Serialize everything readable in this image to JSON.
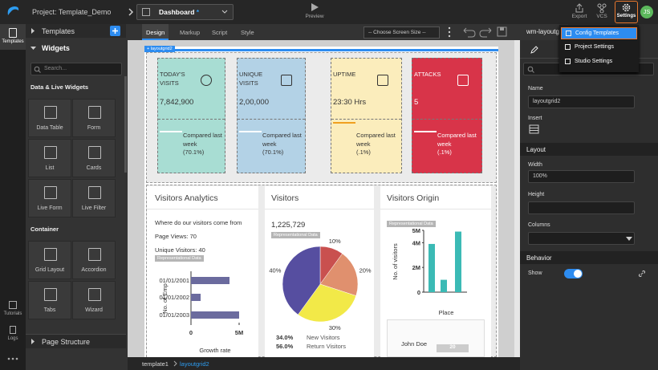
{
  "top_bar": {
    "project": "Project: Template_Demo",
    "page": "Dashboard",
    "page_modified": "*",
    "preview": "Preview",
    "export": "Export",
    "vcs": "VCS",
    "settings": "Settings",
    "user": "JS"
  },
  "left_rail": {
    "templates": "Templates",
    "tutorials": "Tutorials",
    "logs": "Logs"
  },
  "left_panel": {
    "templates": "Templates",
    "widgets": "Widgets",
    "search_placeholder": "Search...",
    "groups": [
      {
        "title": "Data & Live Widgets",
        "items": [
          "Data Table",
          "Form",
          "List",
          "Cards",
          "Live Form",
          "Live Filter"
        ]
      },
      {
        "title": "Container",
        "items": [
          "Grid Layout",
          "Accordion",
          "Tabs",
          "Wizard"
        ]
      }
    ],
    "page_structure": "Page Structure"
  },
  "editor_tabs": [
    "Design",
    "Markup",
    "Script",
    "Style"
  ],
  "screen_size": "-- Choose Screen Size --",
  "canvas": {
    "grid_label": "layoutgrid2",
    "tiles": [
      {
        "title": "TODAY'S VISITS",
        "value": "7,842,900",
        "compare": "Compared last week",
        "change": "(70.1%)"
      },
      {
        "title": "UNIQUE VISITS",
        "value": "2,00,000",
        "compare": "Compared last week",
        "change": "(70.1%)"
      },
      {
        "title": "UPTIME",
        "value": "23:30 Hrs",
        "compare": "Compared last week",
        "change": "(.1%)"
      },
      {
        "title": "ATTACKS",
        "value": "5",
        "compare": "Compared last week",
        "change": "(.1%)"
      }
    ],
    "analytics": {
      "title": "Visitors Analytics",
      "subtitle": "Where do our visitors come from",
      "page_views": "Page Views: 70",
      "unique_visitors": "Unique Visitors: 40",
      "badge": "Representational Data"
    },
    "visitors": {
      "title": "Visitors",
      "total": "1,225,729",
      "badge": "Representational Data",
      "legend": [
        {
          "value": "34.0%",
          "label": "New Visitors"
        },
        {
          "value": "56.0%",
          "label": "Return Visitors"
        }
      ]
    },
    "origin": {
      "title": "Visitors Origin",
      "badge": "Representational Data",
      "table_name": "John Doe",
      "table_value": "20"
    }
  },
  "chart_data": [
    {
      "type": "hbar",
      "categories": [
        "01/01/2001",
        "01/01/2002",
        "01/01/2003"
      ],
      "values": [
        4000000,
        1000000,
        5000000
      ],
      "color": "#6b6b9e",
      "xlim": [
        0,
        5000000
      ],
      "xticks": [
        0,
        {
          "value": 5000000,
          "label": "5M"
        }
      ],
      "x_label": "Growth rate",
      "y_label": "No. of Emp"
    },
    {
      "type": "pie",
      "values": [
        10,
        20,
        30,
        40
      ],
      "value_labels": [
        "10%",
        "20%",
        "30%",
        "40%"
      ],
      "colors": [
        "#c9504f",
        "#e0906e",
        "#f2e948",
        "#564ea0"
      ]
    },
    {
      "type": "bar",
      "categories": [
        null,
        null,
        null
      ],
      "values": [
        3900000,
        1000000,
        4900000
      ],
      "color": "#3bbab5",
      "ylim": [
        0,
        5000000
      ],
      "yticks": [
        0,
        {
          "value": 2000000,
          "label": "2M"
        },
        {
          "value": 4000000,
          "label": "4M"
        },
        {
          "value": 5000000,
          "label": "5M"
        }
      ],
      "x_label": "Place",
      "y_label": "No. of visitors"
    }
  ],
  "breadcrumb": [
    "template1",
    "layoutgrid2"
  ],
  "right_panel": {
    "tab": "wm-layoutgrid",
    "name_label": "Name",
    "name_value": "layoutgrid2",
    "insert": "Insert",
    "layout": "Layout",
    "width_label": "Width",
    "width_value": "100%",
    "height_label": "Height",
    "columns_label": "Columns",
    "behavior": "Behavior",
    "show": "Show"
  },
  "settings_menu": [
    "Config Templates",
    "Project Settings",
    "Studio Settings"
  ]
}
